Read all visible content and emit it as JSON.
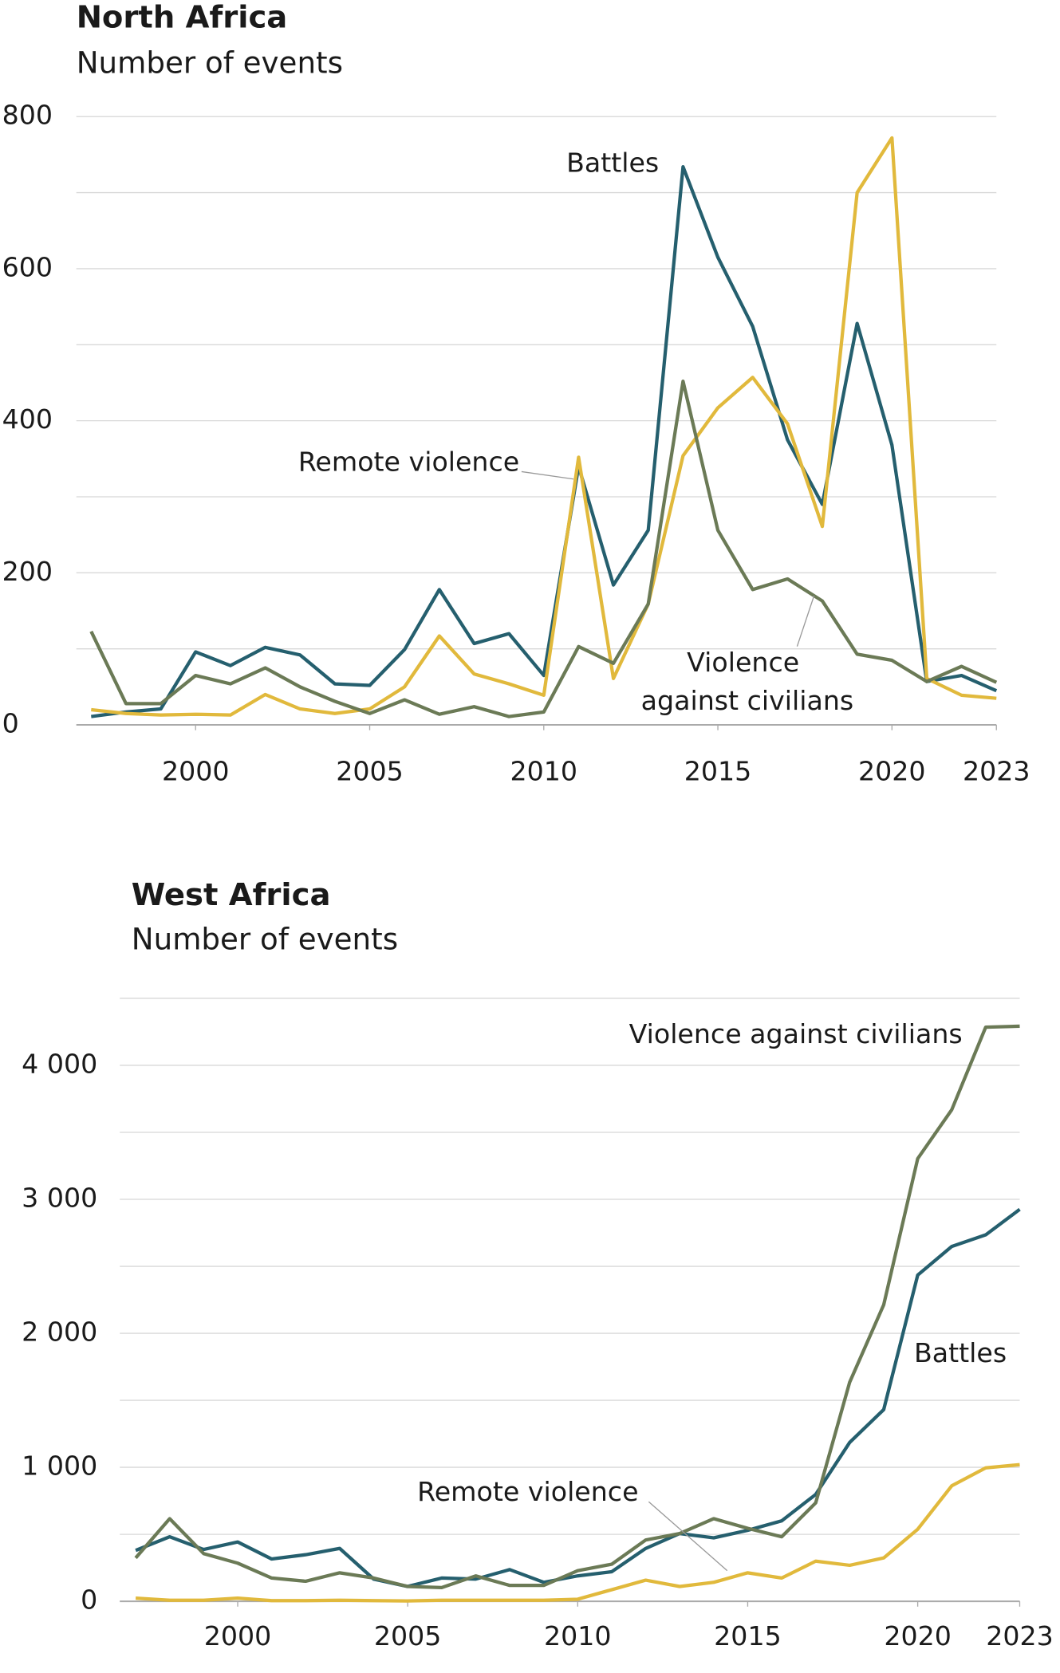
{
  "chart_data": [
    {
      "type": "line",
      "title": "North Africa",
      "subtitle": "Number of events",
      "x": [
        1997,
        1998,
        1999,
        2000,
        2001,
        2002,
        2003,
        2004,
        2005,
        2006,
        2007,
        2008,
        2009,
        2010,
        2011,
        2012,
        2013,
        2014,
        2015,
        2016,
        2017,
        2018,
        2019,
        2020,
        2021,
        2022,
        2023
      ],
      "xlim": [
        1997,
        2023
      ],
      "xticks": [
        2000,
        2005,
        2010,
        2015,
        2020,
        2023
      ],
      "ylim": [
        0,
        800
      ],
      "yticks": [
        0,
        200,
        400,
        600,
        800
      ],
      "y_gridlines": [
        0,
        100,
        200,
        300,
        400,
        500,
        600,
        700,
        800
      ],
      "series": [
        {
          "name": "Battles",
          "color": "#255f6e",
          "values": [
            11,
            17,
            21,
            96,
            78,
            102,
            92,
            54,
            52,
            99,
            178,
            107,
            120,
            65,
            340,
            184,
            256,
            734,
            615,
            524,
            375,
            290,
            528,
            368,
            57,
            65,
            45
          ]
        },
        {
          "name": "Remote violence",
          "color": "#e1b93c",
          "values": [
            20,
            15,
            13,
            14,
            13,
            40,
            21,
            15,
            21,
            50,
            117,
            67,
            54,
            39,
            352,
            61,
            159,
            354,
            417,
            457,
            396,
            261,
            700,
            772,
            61,
            39,
            35
          ]
        },
        {
          "name": "Violence against civilians",
          "color": "#6b7a56",
          "values": [
            123,
            28,
            28,
            65,
            54,
            75,
            50,
            31,
            15,
            33,
            14,
            24,
            11,
            17,
            103,
            81,
            159,
            452,
            256,
            178,
            192,
            163,
            93,
            85,
            57,
            77,
            56
          ]
        }
      ]
    },
    {
      "type": "line",
      "title": "West Africa",
      "subtitle": "Number of events",
      "x": [
        1997,
        1998,
        1999,
        2000,
        2001,
        2002,
        2003,
        2004,
        2005,
        2006,
        2007,
        2008,
        2009,
        2010,
        2011,
        2012,
        2013,
        2014,
        2015,
        2016,
        2017,
        2018,
        2019,
        2020,
        2021,
        2022,
        2023
      ],
      "xlim": [
        1997,
        2023
      ],
      "xticks": [
        2000,
        2005,
        2010,
        2015,
        2020,
        2023
      ],
      "ylim": [
        0,
        4500
      ],
      "yticks": [
        0,
        {
          "value": 1000,
          "label": "1 000"
        },
        {
          "value": 2000,
          "label": "2 000"
        },
        {
          "value": 3000,
          "label": "3 000"
        },
        {
          "value": 4000,
          "label": "4 000"
        }
      ],
      "y_gridlines": [
        0,
        500,
        1000,
        1500,
        2000,
        2500,
        3000,
        3500,
        4000,
        4500
      ],
      "series": [
        {
          "name": "Battles",
          "color": "#255f6e",
          "values": [
            380,
            482,
            387,
            443,
            316,
            348,
            395,
            166,
            111,
            174,
            166,
            237,
            142,
            190,
            221,
            395,
            506,
            474,
            530,
            601,
            798,
            1186,
            1431,
            2435,
            2648,
            2735,
            2925
          ]
        },
        {
          "name": "Remote violence",
          "color": "#e1b93c",
          "values": [
            24,
            8,
            8,
            24,
            5,
            5,
            8,
            5,
            3,
            8,
            8,
            8,
            8,
            16,
            87,
            158,
            111,
            142,
            213,
            174,
            300,
            269,
            324,
            538,
            862,
            996,
            1020
          ]
        },
        {
          "name": "Violence against civilians",
          "color": "#6b7a56",
          "values": [
            324,
            617,
            356,
            285,
            174,
            150,
            213,
            174,
            111,
            103,
            190,
            119,
            119,
            229,
            277,
            458,
            506,
            617,
            545,
            482,
            735,
            1636,
            2213,
            3304,
            3668,
            4285,
            4292
          ]
        }
      ]
    }
  ]
}
